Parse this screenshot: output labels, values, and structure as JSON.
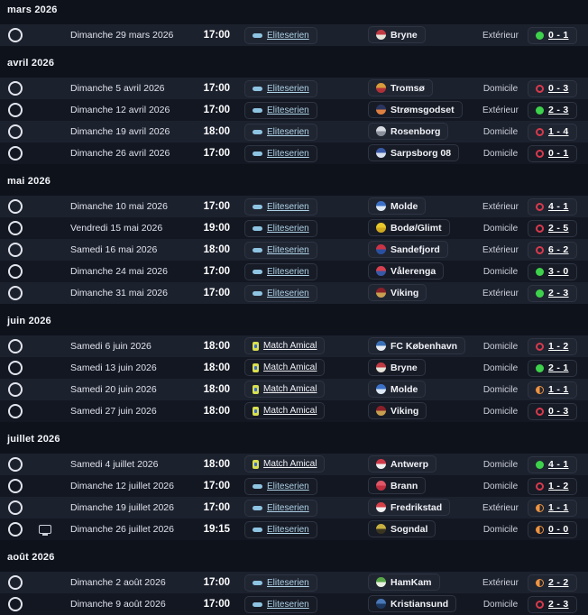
{
  "colors": {
    "win": "#3ed14b",
    "loss": "#d83a4c",
    "draw": "#ee9340",
    "eliteserien_accent": "#8ec4e2",
    "amical_accent": "#d9e04e",
    "row_light": "#1c212e",
    "row_dark": "#131722",
    "background": "#0e121b"
  },
  "sections": [
    {
      "month": "mars 2026",
      "rows": [
        {
          "date": "Dimanche 29 mars 2026",
          "time": "17:00",
          "tv": false,
          "comp": {
            "type": "eliteserien",
            "label": "Eliteserien"
          },
          "team": {
            "name": "Bryne",
            "c1": "#c23a42",
            "c2": "#e8e4da"
          },
          "venue": "Extérieur",
          "result": {
            "status": "win",
            "score": "0 - 1"
          }
        }
      ]
    },
    {
      "month": "avril 2026",
      "rows": [
        {
          "date": "Dimanche 5 avril 2026",
          "time": "17:00",
          "tv": false,
          "comp": {
            "type": "eliteserien",
            "label": "Eliteserien"
          },
          "team": {
            "name": "Tromsø",
            "c1": "#d89c3a",
            "c2": "#b03038"
          },
          "venue": "Domicile",
          "result": {
            "status": "loss",
            "score": "0 - 3"
          }
        },
        {
          "date": "Dimanche 12 avril 2026",
          "time": "17:00",
          "tv": false,
          "comp": {
            "type": "eliteserien",
            "label": "Eliteserien"
          },
          "team": {
            "name": "Strømsgodset",
            "c1": "#2a3560",
            "c2": "#e08040"
          },
          "venue": "Extérieur",
          "result": {
            "status": "win",
            "score": "2 - 3"
          }
        },
        {
          "date": "Dimanche 19 avril 2026",
          "time": "18:00",
          "tv": false,
          "comp": {
            "type": "eliteserien",
            "label": "Eliteserien"
          },
          "team": {
            "name": "Rosenborg",
            "c1": "#d8dce2",
            "c2": "#8a909c"
          },
          "venue": "Domicile",
          "result": {
            "status": "loss",
            "score": "1 - 4"
          }
        },
        {
          "date": "Dimanche 26 avril 2026",
          "time": "17:00",
          "tv": false,
          "comp": {
            "type": "eliteserien",
            "label": "Eliteserien"
          },
          "team": {
            "name": "Sarpsborg 08",
            "c1": "#3a5aa8",
            "c2": "#d8e0f0"
          },
          "venue": "Domicile",
          "result": {
            "status": "loss",
            "score": "0 - 1"
          }
        }
      ]
    },
    {
      "month": "mai 2026",
      "rows": [
        {
          "date": "Dimanche 10 mai 2026",
          "time": "17:00",
          "tv": false,
          "comp": {
            "type": "eliteserien",
            "label": "Eliteserien"
          },
          "team": {
            "name": "Molde",
            "c1": "#3a70c8",
            "c2": "#dce8f4"
          },
          "venue": "Extérieur",
          "result": {
            "status": "loss",
            "score": "4 - 1"
          }
        },
        {
          "date": "Vendredi 15 mai 2026",
          "time": "19:00",
          "tv": false,
          "comp": {
            "type": "eliteserien",
            "label": "Eliteserien"
          },
          "team": {
            "name": "Bodø/Glimt",
            "c1": "#e8c82a",
            "c2": "#d0a820"
          },
          "venue": "Domicile",
          "result": {
            "status": "loss",
            "score": "2 - 5"
          }
        },
        {
          "date": "Samedi 16 mai 2026",
          "time": "18:00",
          "tv": false,
          "comp": {
            "type": "eliteserien",
            "label": "Eliteserien"
          },
          "team": {
            "name": "Sandefjord",
            "c1": "#cc3344",
            "c2": "#2a50a0"
          },
          "venue": "Extérieur",
          "result": {
            "status": "loss",
            "score": "6 - 2"
          }
        },
        {
          "date": "Dimanche 24 mai 2026",
          "time": "17:00",
          "tv": false,
          "comp": {
            "type": "eliteserien",
            "label": "Eliteserien"
          },
          "team": {
            "name": "Vålerenga",
            "c1": "#d84050",
            "c2": "#3858a8"
          },
          "venue": "Domicile",
          "result": {
            "status": "win",
            "score": "3 - 0"
          }
        },
        {
          "date": "Dimanche 31 mai 2026",
          "time": "17:00",
          "tv": false,
          "comp": {
            "type": "eliteserien",
            "label": "Eliteserien"
          },
          "team": {
            "name": "Viking",
            "c1": "#8a2028",
            "c2": "#c8a050"
          },
          "venue": "Extérieur",
          "result": {
            "status": "win",
            "score": "2 - 3"
          }
        }
      ]
    },
    {
      "month": "juin 2026",
      "rows": [
        {
          "date": "Samedi 6 juin 2026",
          "time": "18:00",
          "tv": false,
          "comp": {
            "type": "amical",
            "label": "Match Amical"
          },
          "team": {
            "name": "FC København",
            "c1": "#3a70b8",
            "c2": "#e8ecf2"
          },
          "venue": "Domicile",
          "result": {
            "status": "loss",
            "score": "1 - 2"
          }
        },
        {
          "date": "Samedi 13 juin 2026",
          "time": "18:00",
          "tv": false,
          "comp": {
            "type": "amical",
            "label": "Match Amical"
          },
          "team": {
            "name": "Bryne",
            "c1": "#c23a42",
            "c2": "#e8e4da"
          },
          "venue": "Domicile",
          "result": {
            "status": "win",
            "score": "2 - 1"
          }
        },
        {
          "date": "Samedi 20 juin 2026",
          "time": "18:00",
          "tv": false,
          "comp": {
            "type": "amical",
            "label": "Match Amical"
          },
          "team": {
            "name": "Molde",
            "c1": "#3a70c8",
            "c2": "#dce8f4"
          },
          "venue": "Domicile",
          "result": {
            "status": "draw",
            "score": "1 - 1"
          }
        },
        {
          "date": "Samedi 27 juin 2026",
          "time": "18:00",
          "tv": false,
          "comp": {
            "type": "amical",
            "label": "Match Amical"
          },
          "team": {
            "name": "Viking",
            "c1": "#8a2028",
            "c2": "#c8a050"
          },
          "venue": "Domicile",
          "result": {
            "status": "loss",
            "score": "0 - 3"
          }
        }
      ]
    },
    {
      "month": "juillet 2026",
      "rows": [
        {
          "date": "Samedi 4 juillet 2026",
          "time": "18:00",
          "tv": false,
          "comp": {
            "type": "amical",
            "label": "Match Amical"
          },
          "team": {
            "name": "Antwerp",
            "c1": "#d03848",
            "c2": "#f0f0f0"
          },
          "venue": "Domicile",
          "result": {
            "status": "win",
            "score": "4 - 1"
          }
        },
        {
          "date": "Dimanche 12 juillet 2026",
          "time": "17:00",
          "tv": false,
          "comp": {
            "type": "eliteserien",
            "label": "Eliteserien"
          },
          "team": {
            "name": "Brann",
            "c1": "#e05868",
            "c2": "#c03040"
          },
          "venue": "Domicile",
          "result": {
            "status": "loss",
            "score": "1 - 2"
          }
        },
        {
          "date": "Dimanche 19 juillet 2026",
          "time": "17:00",
          "tv": false,
          "comp": {
            "type": "eliteserien",
            "label": "Eliteserien"
          },
          "team": {
            "name": "Fredrikstad",
            "c1": "#d84048",
            "c2": "#f0f0f0"
          },
          "venue": "Extérieur",
          "result": {
            "status": "draw",
            "score": "1 - 1"
          }
        },
        {
          "date": "Dimanche 26 juillet 2026",
          "time": "19:15",
          "tv": true,
          "comp": {
            "type": "eliteserien",
            "label": "Eliteserien"
          },
          "team": {
            "name": "Sogndal",
            "c1": "#c8b040",
            "c2": "#3a3520"
          },
          "venue": "Domicile",
          "result": {
            "status": "draw",
            "score": "0 - 0"
          }
        }
      ]
    },
    {
      "month": "août 2026",
      "rows": [
        {
          "date": "Dimanche 2 août 2026",
          "time": "17:00",
          "tv": false,
          "comp": {
            "type": "eliteserien",
            "label": "Eliteserien"
          },
          "team": {
            "name": "HamKam",
            "c1": "#58a848",
            "c2": "#e8f0e0"
          },
          "venue": "Extérieur",
          "result": {
            "status": "draw",
            "score": "2 - 2"
          }
        },
        {
          "date": "Dimanche 9 août 2026",
          "time": "17:00",
          "tv": false,
          "comp": {
            "type": "eliteserien",
            "label": "Eliteserien"
          },
          "team": {
            "name": "Kristiansund",
            "c1": "#4878b8",
            "c2": "#1c3860"
          },
          "venue": "Domicile",
          "result": {
            "status": "loss",
            "score": "2 - 3"
          }
        }
      ]
    }
  ]
}
